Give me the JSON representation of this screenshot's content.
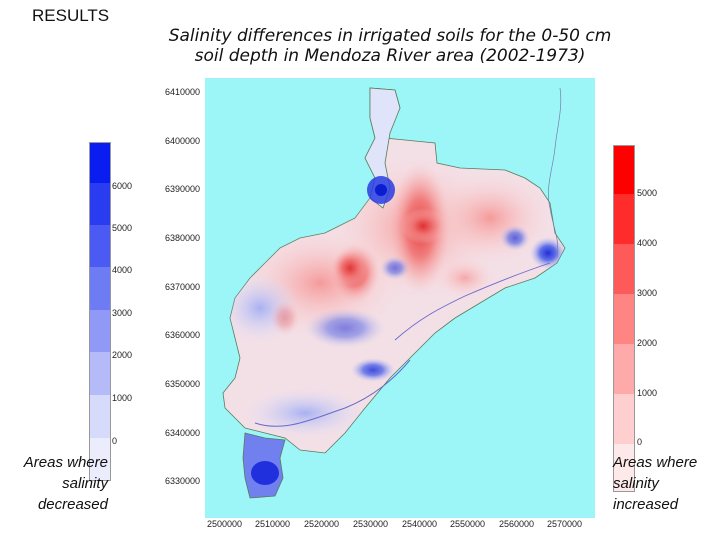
{
  "header": {
    "section_label": "RESULTS",
    "title_line1": "Salinity differences in irrigated soils for the 0-50 cm",
    "title_line2": "soil depth in Mendoza River area (2002-1973)"
  },
  "map": {
    "y_ticks": [
      "6410000",
      "6400000",
      "6390000",
      "6380000",
      "6370000",
      "6360000",
      "6350000",
      "6340000",
      "6330000"
    ],
    "x_ticks": [
      "2500000",
      "2510000",
      "2520000",
      "2530000",
      "2540000",
      "2550000",
      "2560000",
      "2570000"
    ],
    "background_color": "#9cf6f8"
  },
  "legend_decreased": {
    "labels": [
      "6000",
      "5000",
      "4000",
      "3000",
      "2000",
      "1000",
      "0"
    ],
    "colors": [
      "#0a1df0",
      "#2a3cf0",
      "#4a5af2",
      "#6e7cf4",
      "#9099f6",
      "#b4bbf8",
      "#d7dbfb",
      "#ebedfd"
    ],
    "caption": [
      "Areas where",
      "salinity",
      "decreased"
    ]
  },
  "legend_increased": {
    "labels": [
      "5000",
      "4000",
      "3000",
      "2000",
      "1000",
      "0"
    ],
    "colors": [
      "#ff0000",
      "#ff2c2c",
      "#ff5a5a",
      "#ff8585",
      "#ffaaaa",
      "#ffcfcf",
      "#fde9e9"
    ],
    "caption": [
      "Areas where",
      "salinity",
      "increased"
    ]
  }
}
